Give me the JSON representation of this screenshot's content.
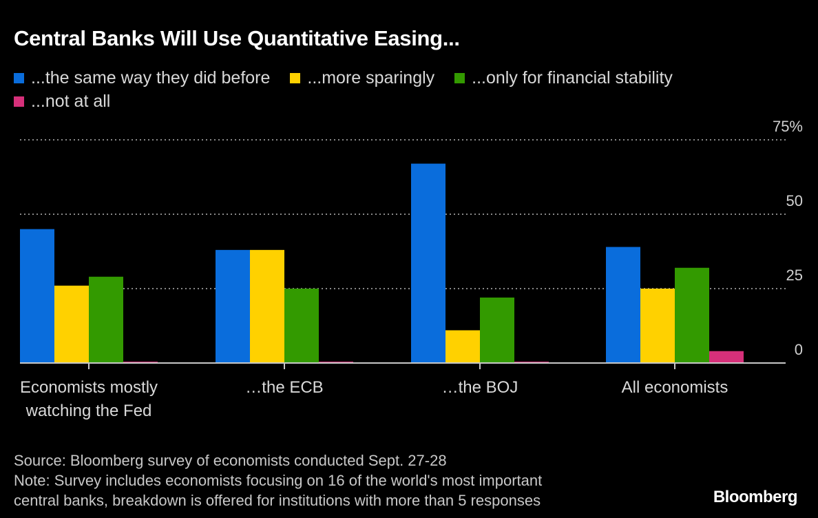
{
  "chart_data": {
    "type": "bar",
    "title": "Central Banks Will Use Quantitative Easing...",
    "categories": [
      "Economists mostly watching the Fed",
      "...the ECB",
      "...the BOJ",
      "All economists"
    ],
    "category_lines": [
      [
        "Economists mostly",
        "watching the Fed"
      ],
      [
        "…the ECB"
      ],
      [
        "…the BOJ"
      ],
      [
        "All economists"
      ]
    ],
    "series": [
      {
        "name": "...the same way they did before",
        "color": "#0a6ddc",
        "values": [
          45,
          38,
          67,
          39
        ]
      },
      {
        "name": "...more sparingly",
        "color": "#ffd100",
        "values": [
          26,
          38,
          11,
          25
        ]
      },
      {
        "name": "...only for financial stability",
        "color": "#339a00",
        "values": [
          29,
          25,
          22,
          32
        ]
      },
      {
        "name": "...not at all",
        "color": "#d6307a",
        "values": [
          0,
          0,
          0,
          4
        ]
      }
    ],
    "xlabel": "",
    "ylabel": "",
    "ylim": [
      0,
      75
    ],
    "yticks": [
      0,
      25,
      50,
      75
    ],
    "ytick_labels": [
      "0",
      "25",
      "50",
      "75%"
    ],
    "y_axis_side": "right",
    "grid": true,
    "legend_position": "top-left"
  },
  "footer": {
    "source": "Source: Bloomberg survey of economists conducted Sept. 27-28",
    "note_line1": "Note: Survey includes economists focusing on 16 of the world's most important",
    "note_line2": "central banks, breakdown is offered for institutions with more than 5 responses"
  },
  "brand": "Bloomberg"
}
